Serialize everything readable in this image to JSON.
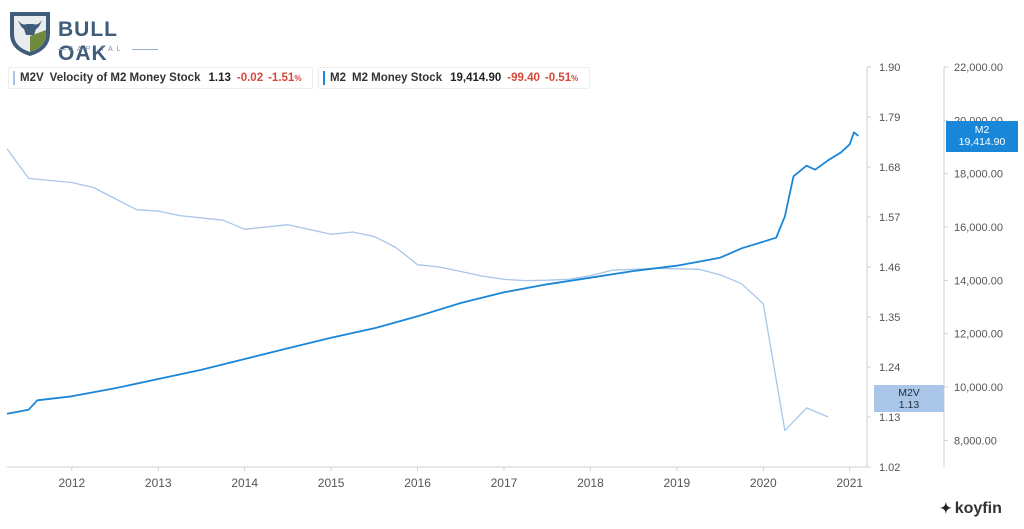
{
  "brand": {
    "name": "BULL OAK",
    "subtitle": "CAPITAL",
    "watermark": "koyfin",
    "logo_color": "#3f5d7a"
  },
  "legend": [
    {
      "symbol": "M2V",
      "name": "Velocity of M2 Money Stock",
      "value": "1.13",
      "change": "-0.02",
      "change_pct": "-1.51",
      "pct_unit": "%",
      "color": "#a9c6e8"
    },
    {
      "symbol": "M2",
      "name": "M2 Money Stock",
      "value": "19,414.90",
      "change": "-99.40",
      "change_pct": "-0.51",
      "pct_unit": "%",
      "color": "#1a86d8"
    }
  ],
  "flags": {
    "m2": {
      "label": "M2",
      "value": "19,414.90",
      "color": "#1a86d8"
    },
    "m2v": {
      "label": "M2V",
      "value": "1.13",
      "color": "#a9c6e8"
    }
  },
  "chart_data": {
    "type": "line",
    "x_ticks": [
      "2012",
      "2013",
      "2014",
      "2015",
      "2016",
      "2017",
      "2018",
      "2019",
      "2020",
      "2021"
    ],
    "xlim": [
      2011.25,
      2021.2
    ],
    "left_axis": {
      "ticks": [
        "1.90",
        "1.79",
        "1.68",
        "1.57",
        "1.46",
        "1.35",
        "1.24",
        "1.13",
        "1.02"
      ],
      "ylim": [
        1.02,
        1.9
      ]
    },
    "right_axis": {
      "ticks": [
        "22,000.00",
        "20,000.00",
        "18,000.00",
        "16,000.00",
        "14,000.00",
        "12,000.00",
        "10,000.00",
        "8,000.00"
      ],
      "ylim": [
        7000,
        22000
      ]
    },
    "grid": false,
    "series": [
      {
        "name": "Velocity of M2 Money Stock",
        "axis": "left",
        "color": "#a9c6e8",
        "points": [
          [
            2011.25,
            1.72
          ],
          [
            2011.5,
            1.655
          ],
          [
            2012.0,
            1.646
          ],
          [
            2012.25,
            1.635
          ],
          [
            2012.75,
            1.586
          ],
          [
            2013.0,
            1.583
          ],
          [
            2013.25,
            1.573
          ],
          [
            2013.75,
            1.563
          ],
          [
            2014.0,
            1.543
          ],
          [
            2014.5,
            1.553
          ],
          [
            2015.0,
            1.532
          ],
          [
            2015.25,
            1.537
          ],
          [
            2015.5,
            1.527
          ],
          [
            2015.75,
            1.503
          ],
          [
            2016.0,
            1.465
          ],
          [
            2016.25,
            1.46
          ],
          [
            2016.5,
            1.45
          ],
          [
            2016.75,
            1.44
          ],
          [
            2017.0,
            1.433
          ],
          [
            2017.25,
            1.43
          ],
          [
            2017.5,
            1.431
          ],
          [
            2017.75,
            1.433
          ],
          [
            2018.0,
            1.441
          ],
          [
            2018.25,
            1.453
          ],
          [
            2018.5,
            1.455
          ],
          [
            2018.75,
            1.457
          ],
          [
            2019.0,
            1.456
          ],
          [
            2019.25,
            1.455
          ],
          [
            2019.5,
            1.443
          ],
          [
            2019.75,
            1.423
          ],
          [
            2020.0,
            1.379
          ],
          [
            2020.25,
            1.1
          ],
          [
            2020.5,
            1.15
          ],
          [
            2020.75,
            1.13
          ]
        ]
      },
      {
        "name": "M2 Money Stock",
        "axis": "right",
        "color": "#1a86d8",
        "points": [
          [
            2011.25,
            9000
          ],
          [
            2011.5,
            9150
          ],
          [
            2011.6,
            9500
          ],
          [
            2012.0,
            9650
          ],
          [
            2012.5,
            9950
          ],
          [
            2013.0,
            10300
          ],
          [
            2013.5,
            10650
          ],
          [
            2014.0,
            11050
          ],
          [
            2014.5,
            11450
          ],
          [
            2015.0,
            11850
          ],
          [
            2015.5,
            12200
          ],
          [
            2016.0,
            12650
          ],
          [
            2016.5,
            13150
          ],
          [
            2017.0,
            13550
          ],
          [
            2017.5,
            13850
          ],
          [
            2018.0,
            14100
          ],
          [
            2018.5,
            14350
          ],
          [
            2019.0,
            14550
          ],
          [
            2019.5,
            14850
          ],
          [
            2019.75,
            15200
          ],
          [
            2020.0,
            15450
          ],
          [
            2020.15,
            15600
          ],
          [
            2020.25,
            16400
          ],
          [
            2020.35,
            17900
          ],
          [
            2020.5,
            18300
          ],
          [
            2020.6,
            18150
          ],
          [
            2020.75,
            18500
          ],
          [
            2020.9,
            18800
          ],
          [
            2021.0,
            19100
          ],
          [
            2021.05,
            19550
          ],
          [
            2021.1,
            19414.9
          ]
        ]
      }
    ]
  }
}
